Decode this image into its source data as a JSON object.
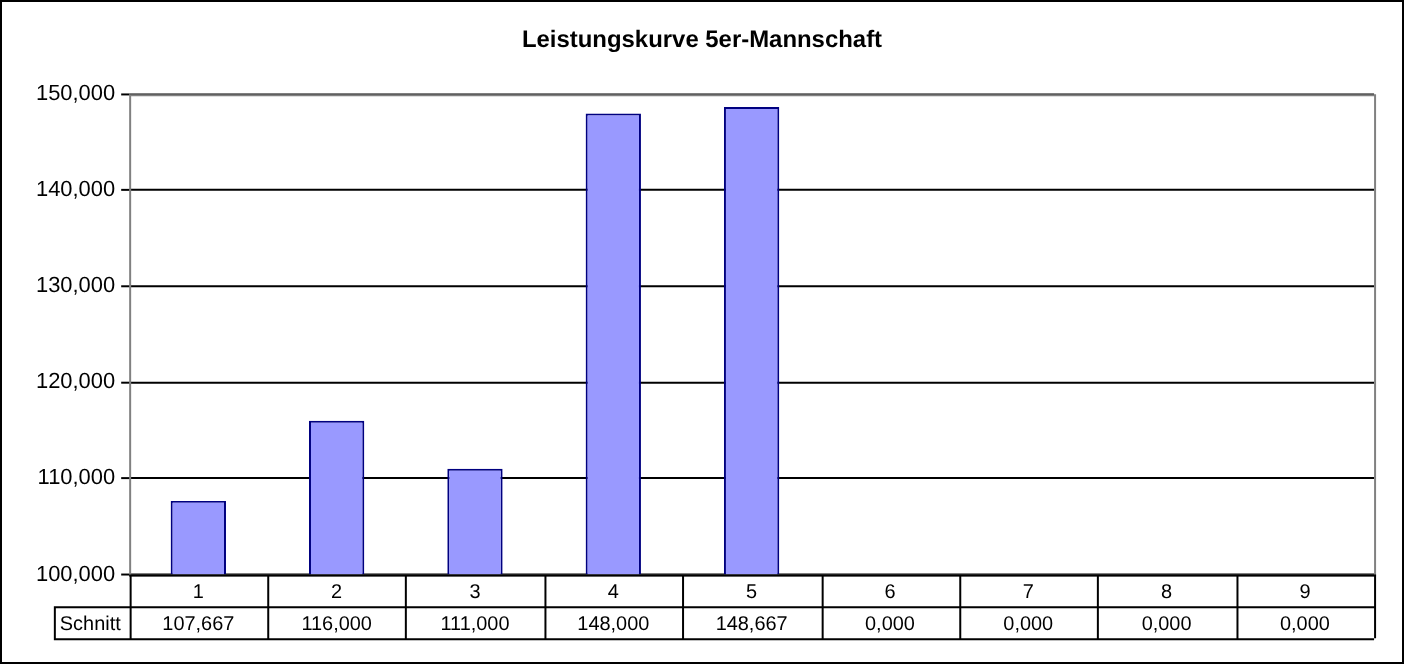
{
  "chart_data": {
    "type": "bar",
    "title": "Leistungskurve 5er-Mannschaft",
    "categories": [
      "1",
      "2",
      "3",
      "4",
      "5",
      "6",
      "7",
      "8",
      "9"
    ],
    "series": [
      {
        "name": "Schnitt",
        "color": "#9999ff",
        "values": [
          107.667,
          116,
          111,
          148,
          148.667,
          null,
          null,
          null,
          null
        ],
        "value_labels": [
          "107,667",
          "116,000",
          "111,000",
          "148,000",
          "148,667",
          "0,000",
          "0,000",
          "0,000",
          "0,000"
        ]
      }
    ],
    "ylim": [
      100,
      150
    ],
    "yticks": [
      {
        "value": 100,
        "label": "100,000"
      },
      {
        "value": 110,
        "label": "110,000"
      },
      {
        "value": 120,
        "label": "120,000"
      },
      {
        "value": 130,
        "label": "130,000"
      },
      {
        "value": 140,
        "label": "140,000"
      },
      {
        "value": 150,
        "label": "150,000"
      }
    ],
    "grid": "y",
    "legend": false
  }
}
